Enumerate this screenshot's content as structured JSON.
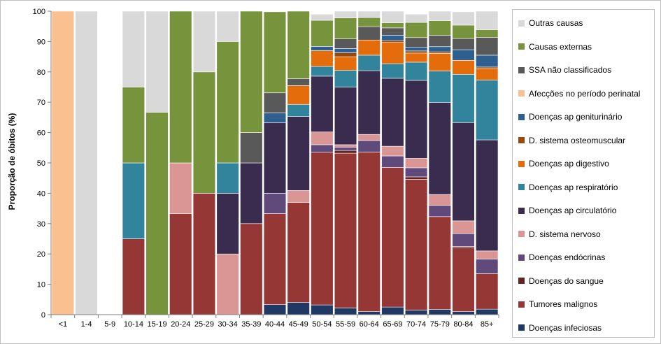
{
  "chart_data": {
    "type": "bar",
    "stacked": true,
    "ylabel": "Proporção de óbitos (%)",
    "ylim": [
      0,
      100
    ],
    "yticks": [
      0,
      10,
      20,
      30,
      40,
      50,
      60,
      70,
      80,
      90,
      100
    ],
    "grid": false,
    "legend_position": "right",
    "categories": [
      "<1",
      "1-4",
      "5-9",
      "10-14",
      "15-19",
      "20-24",
      "25-29",
      "30-34",
      "35-39",
      "40-44",
      "45-49",
      "50-54",
      "55-59",
      "60-64",
      "65-69",
      "70-74",
      "75-79",
      "80-84",
      "85+"
    ],
    "series": [
      {
        "name": "Doenças infeciosas",
        "color": "#1f3864",
        "values": [
          0,
          0,
          0,
          0,
          0,
          0,
          0,
          0,
          0,
          3.3,
          4.0,
          3.2,
          2.2,
          1.0,
          2.5,
          1.5,
          1.7,
          1.0,
          1.8
        ]
      },
      {
        "name": "Tumores malignos",
        "color": "#953735",
        "values": [
          0,
          0,
          0,
          25,
          0,
          33.3,
          40,
          0,
          30,
          30,
          33,
          50.3,
          51.0,
          52.6,
          46.0,
          43.1,
          30.6,
          21.0,
          11.7
        ]
      },
      {
        "name": "Doenças do sangue",
        "color": "#632523",
        "values": [
          0,
          0,
          0,
          0,
          0,
          0,
          0,
          0,
          0,
          0,
          0,
          0,
          0.9,
          0,
          0,
          0.8,
          0,
          0.5,
          0
        ]
      },
      {
        "name": "Doenças endócrinas",
        "color": "#604a7b",
        "values": [
          0,
          0,
          0,
          0,
          0,
          0,
          0,
          0,
          0,
          6.7,
          0,
          2.5,
          1.1,
          3.8,
          3.8,
          3.0,
          3.7,
          4.2,
          4.8
        ]
      },
      {
        "name": "D. sistema nervoso",
        "color": "#d99694",
        "values": [
          0,
          0,
          0,
          0,
          0,
          16.7,
          0,
          20,
          0,
          0,
          3.9,
          4.2,
          0.8,
          2.0,
          3.2,
          3.1,
          3.6,
          4.2,
          2.7
        ]
      },
      {
        "name": "Doenças ap circulatório",
        "color": "#3a2c4f",
        "values": [
          0,
          0,
          0,
          0,
          0,
          0,
          0,
          20,
          20,
          23.2,
          24.4,
          18.4,
          19.0,
          21.0,
          22.4,
          25.7,
          30.3,
          32.4,
          36.6
        ]
      },
      {
        "name": "Doenças ap respiratório",
        "color": "#31849b",
        "values": [
          0,
          0,
          0,
          25,
          0,
          0,
          0,
          10,
          0,
          0,
          4.0,
          3.2,
          5.5,
          5.1,
          4.8,
          6.0,
          10.4,
          15.9,
          19.7
        ]
      },
      {
        "name": "Doenças ap digestivo",
        "color": "#e46c0a",
        "values": [
          0,
          0,
          0,
          0,
          0,
          0,
          0,
          0,
          0,
          0,
          6.2,
          5.2,
          4.5,
          5.0,
          7.0,
          3.0,
          5.8,
          4.6,
          3.8
        ]
      },
      {
        "name": "D. sistema osteomuscular",
        "color": "#984807",
        "values": [
          0,
          0,
          0,
          0,
          0,
          0,
          0,
          0,
          0,
          0,
          0,
          0,
          1.3,
          0,
          0.6,
          0.7,
          0.5,
          0,
          0.5
        ]
      },
      {
        "name": "Doenças ap geniturinário",
        "color": "#2e5f8f",
        "values": [
          0,
          0,
          0,
          0,
          0,
          0,
          0,
          0,
          0,
          3.3,
          0,
          1.4,
          1.4,
          0,
          1.8,
          1.2,
          1.7,
          3.5,
          3.9
        ]
      },
      {
        "name": "Afecções no período perinatal",
        "color": "#fac090",
        "values": [
          100,
          0,
          0,
          0,
          0,
          0,
          0,
          0,
          0,
          0,
          0,
          0,
          0,
          0,
          0,
          0,
          0,
          0,
          0
        ]
      },
      {
        "name": "SSA não classificados",
        "color": "#595959",
        "values": [
          0,
          0,
          0,
          0,
          0,
          0,
          0,
          0,
          10,
          6.6,
          2.3,
          0,
          3.2,
          4.4,
          2.4,
          3.2,
          3.7,
          3.7,
          5.9
        ]
      },
      {
        "name": "Causas externas",
        "color": "#77933c",
        "values": [
          0,
          0,
          0,
          25,
          66.7,
          50,
          40,
          40,
          40,
          26.7,
          22.2,
          8.6,
          6.9,
          3.0,
          1.7,
          5.0,
          4.9,
          4.4,
          2.5
        ]
      },
      {
        "name": "Outras causas",
        "color": "#d9d9d9",
        "values": [
          0,
          100,
          0,
          25,
          33.3,
          0,
          20,
          10,
          0,
          0,
          0,
          2.0,
          2.2,
          2.1,
          3.8,
          2.7,
          3.1,
          4.4,
          6.1
        ]
      }
    ]
  }
}
